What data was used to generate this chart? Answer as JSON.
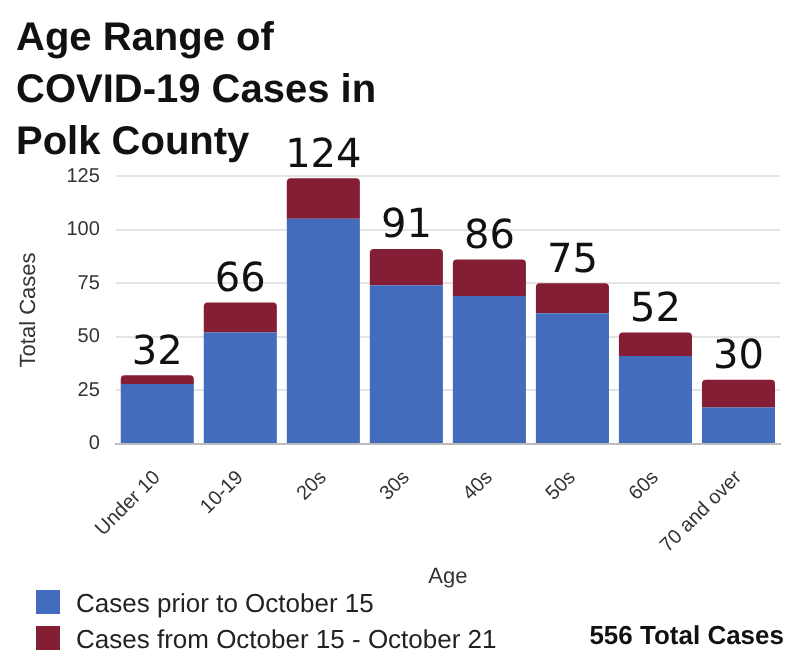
{
  "chart_data": {
    "type": "bar",
    "title": "Age Range of COVID-19 Cases in Polk County",
    "xlabel": "Age",
    "ylabel": "Total Cases",
    "categories": [
      "Under 10",
      "10-19",
      "20s",
      "30s",
      "40s",
      "50s",
      "60s",
      "70 and over"
    ],
    "stacked": true,
    "series": [
      {
        "name": "Cases prior to October 15",
        "color": "#436cbc",
        "values": [
          28,
          52,
          105,
          74,
          69,
          61,
          41,
          17
        ]
      },
      {
        "name": "Cases from October 15 - October 21",
        "color": "#841e35",
        "values": [
          4,
          14,
          19,
          17,
          17,
          14,
          11,
          13
        ]
      }
    ],
    "totals": [
      "32",
      "66",
      "124",
      "91",
      "86",
      "75",
      "52",
      "30"
    ],
    "ylim": [
      0,
      125
    ],
    "yticks": [
      0,
      25,
      50,
      75,
      100,
      125
    ],
    "grid": "y",
    "legend": "bottom left",
    "annotations": [
      "556 Total Cases"
    ]
  }
}
